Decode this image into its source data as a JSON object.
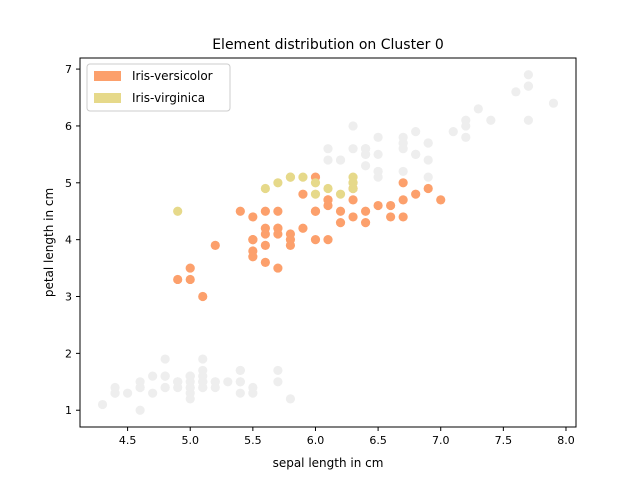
{
  "chart_data": {
    "type": "scatter",
    "title": "Element distribution on Cluster 0",
    "xlabel": "sepal length in cm",
    "ylabel": "petal length in cm",
    "xlim": [
      4.12,
      8.08
    ],
    "ylim": [
      0.705,
      7.195
    ],
    "xticks": [
      "4.5",
      "5.0",
      "5.5",
      "6.0",
      "6.5",
      "7.0",
      "7.5",
      "8.0"
    ],
    "yticks": [
      "1",
      "2",
      "3",
      "4",
      "5",
      "6",
      "7"
    ],
    "grid": false,
    "legend_position": "top-left",
    "series": [
      {
        "name": "Iris-versicolor",
        "color": "#fca06c",
        "x": [
          7.0,
          6.4,
          6.9,
          5.5,
          6.5,
          5.7,
          6.3,
          4.9,
          6.6,
          5.2,
          5.0,
          5.9,
          6.0,
          6.1,
          5.6,
          6.7,
          5.6,
          5.8,
          6.2,
          5.6,
          5.9,
          6.1,
          6.3,
          6.1,
          6.4,
          6.6,
          6.8,
          6.7,
          6.0,
          5.7,
          5.5,
          5.5,
          5.8,
          6.0,
          5.4,
          6.0,
          6.7,
          6.3,
          5.6,
          5.5,
          5.5,
          6.1,
          5.8,
          5.0,
          5.6,
          5.7,
          5.7,
          6.2,
          5.1,
          5.7
        ],
        "y": [
          4.7,
          4.5,
          4.9,
          4.0,
          4.6,
          4.5,
          4.7,
          3.3,
          4.6,
          3.9,
          3.5,
          4.2,
          4.0,
          4.7,
          3.6,
          4.4,
          4.5,
          4.1,
          4.5,
          3.9,
          4.8,
          4.0,
          4.9,
          4.7,
          4.3,
          4.4,
          4.8,
          5.0,
          4.5,
          3.5,
          3.8,
          3.7,
          3.9,
          5.1,
          4.5,
          4.5,
          4.7,
          4.4,
          4.1,
          4.0,
          4.4,
          4.6,
          4.0,
          3.3,
          4.2,
          4.2,
          4.2,
          4.3,
          3.0,
          4.1
        ]
      },
      {
        "name": "Iris-virginica",
        "color": "#e6d98a",
        "x": [
          4.9,
          5.6,
          5.7,
          5.8,
          5.8,
          5.9,
          6.0,
          6.0,
          6.1,
          6.2,
          6.3,
          6.3,
          6.3,
          6.3
        ],
        "y": [
          4.5,
          4.9,
          5.0,
          5.1,
          5.1,
          5.1,
          4.8,
          5.0,
          4.9,
          4.8,
          4.9,
          5.0,
          5.1,
          5.0
        ]
      }
    ],
    "background_points": {
      "color": "#eeeeee",
      "x": [
        5.1,
        4.9,
        4.7,
        4.6,
        5.0,
        5.4,
        4.6,
        5.0,
        4.4,
        4.9,
        5.4,
        4.8,
        4.8,
        4.3,
        5.8,
        5.7,
        5.4,
        5.1,
        5.7,
        5.1,
        5.4,
        5.1,
        4.6,
        5.1,
        4.8,
        5.0,
        5.0,
        5.2,
        5.2,
        4.7,
        4.8,
        5.4,
        5.2,
        5.5,
        4.9,
        5.0,
        5.5,
        4.9,
        4.4,
        5.1,
        5.0,
        4.5,
        4.4,
        5.0,
        5.1,
        4.8,
        5.1,
        4.6,
        5.3,
        5.0,
        6.3,
        7.1,
        6.5,
        7.6,
        7.3,
        6.7,
        7.2,
        6.4,
        6.8,
        6.5,
        6.4,
        7.7,
        7.7,
        6.9,
        7.7,
        6.7,
        7.2,
        6.4,
        7.2,
        7.4,
        7.9,
        6.4,
        6.1,
        7.7,
        6.4,
        6.9,
        6.7,
        6.9,
        6.8,
        6.7,
        6.7,
        6.5,
        6.2,
        6.5,
        6.5,
        6.4,
        6.8,
        6.9,
        6.3,
        6.1,
        6.2
      ],
      "y": [
        1.4,
        1.4,
        1.3,
        1.5,
        1.4,
        1.7,
        1.4,
        1.5,
        1.4,
        1.5,
        1.5,
        1.6,
        1.4,
        1.1,
        1.2,
        1.5,
        1.3,
        1.4,
        1.7,
        1.5,
        1.7,
        1.5,
        1.0,
        1.7,
        1.9,
        1.6,
        1.6,
        1.5,
        1.4,
        1.6,
        1.6,
        1.5,
        1.5,
        1.4,
        1.5,
        1.2,
        1.3,
        1.5,
        1.3,
        1.5,
        1.3,
        1.3,
        1.3,
        1.6,
        1.9,
        1.4,
        1.6,
        1.4,
        1.5,
        1.4,
        6.0,
        5.9,
        5.8,
        6.6,
        6.3,
        5.8,
        6.1,
        5.3,
        5.5,
        5.2,
        5.5,
        6.7,
        6.9,
        5.7,
        6.7,
        5.7,
        6.0,
        5.6,
        5.8,
        6.1,
        6.4,
        5.6,
        5.6,
        6.1,
        5.5,
        5.4,
        5.6,
        5.1,
        5.9,
        5.7,
        5.2,
        5.5,
        5.4,
        5.1,
        5.2,
        5.6,
        5.5,
        5.7,
        5.6,
        5.4,
        5.4
      ]
    }
  }
}
